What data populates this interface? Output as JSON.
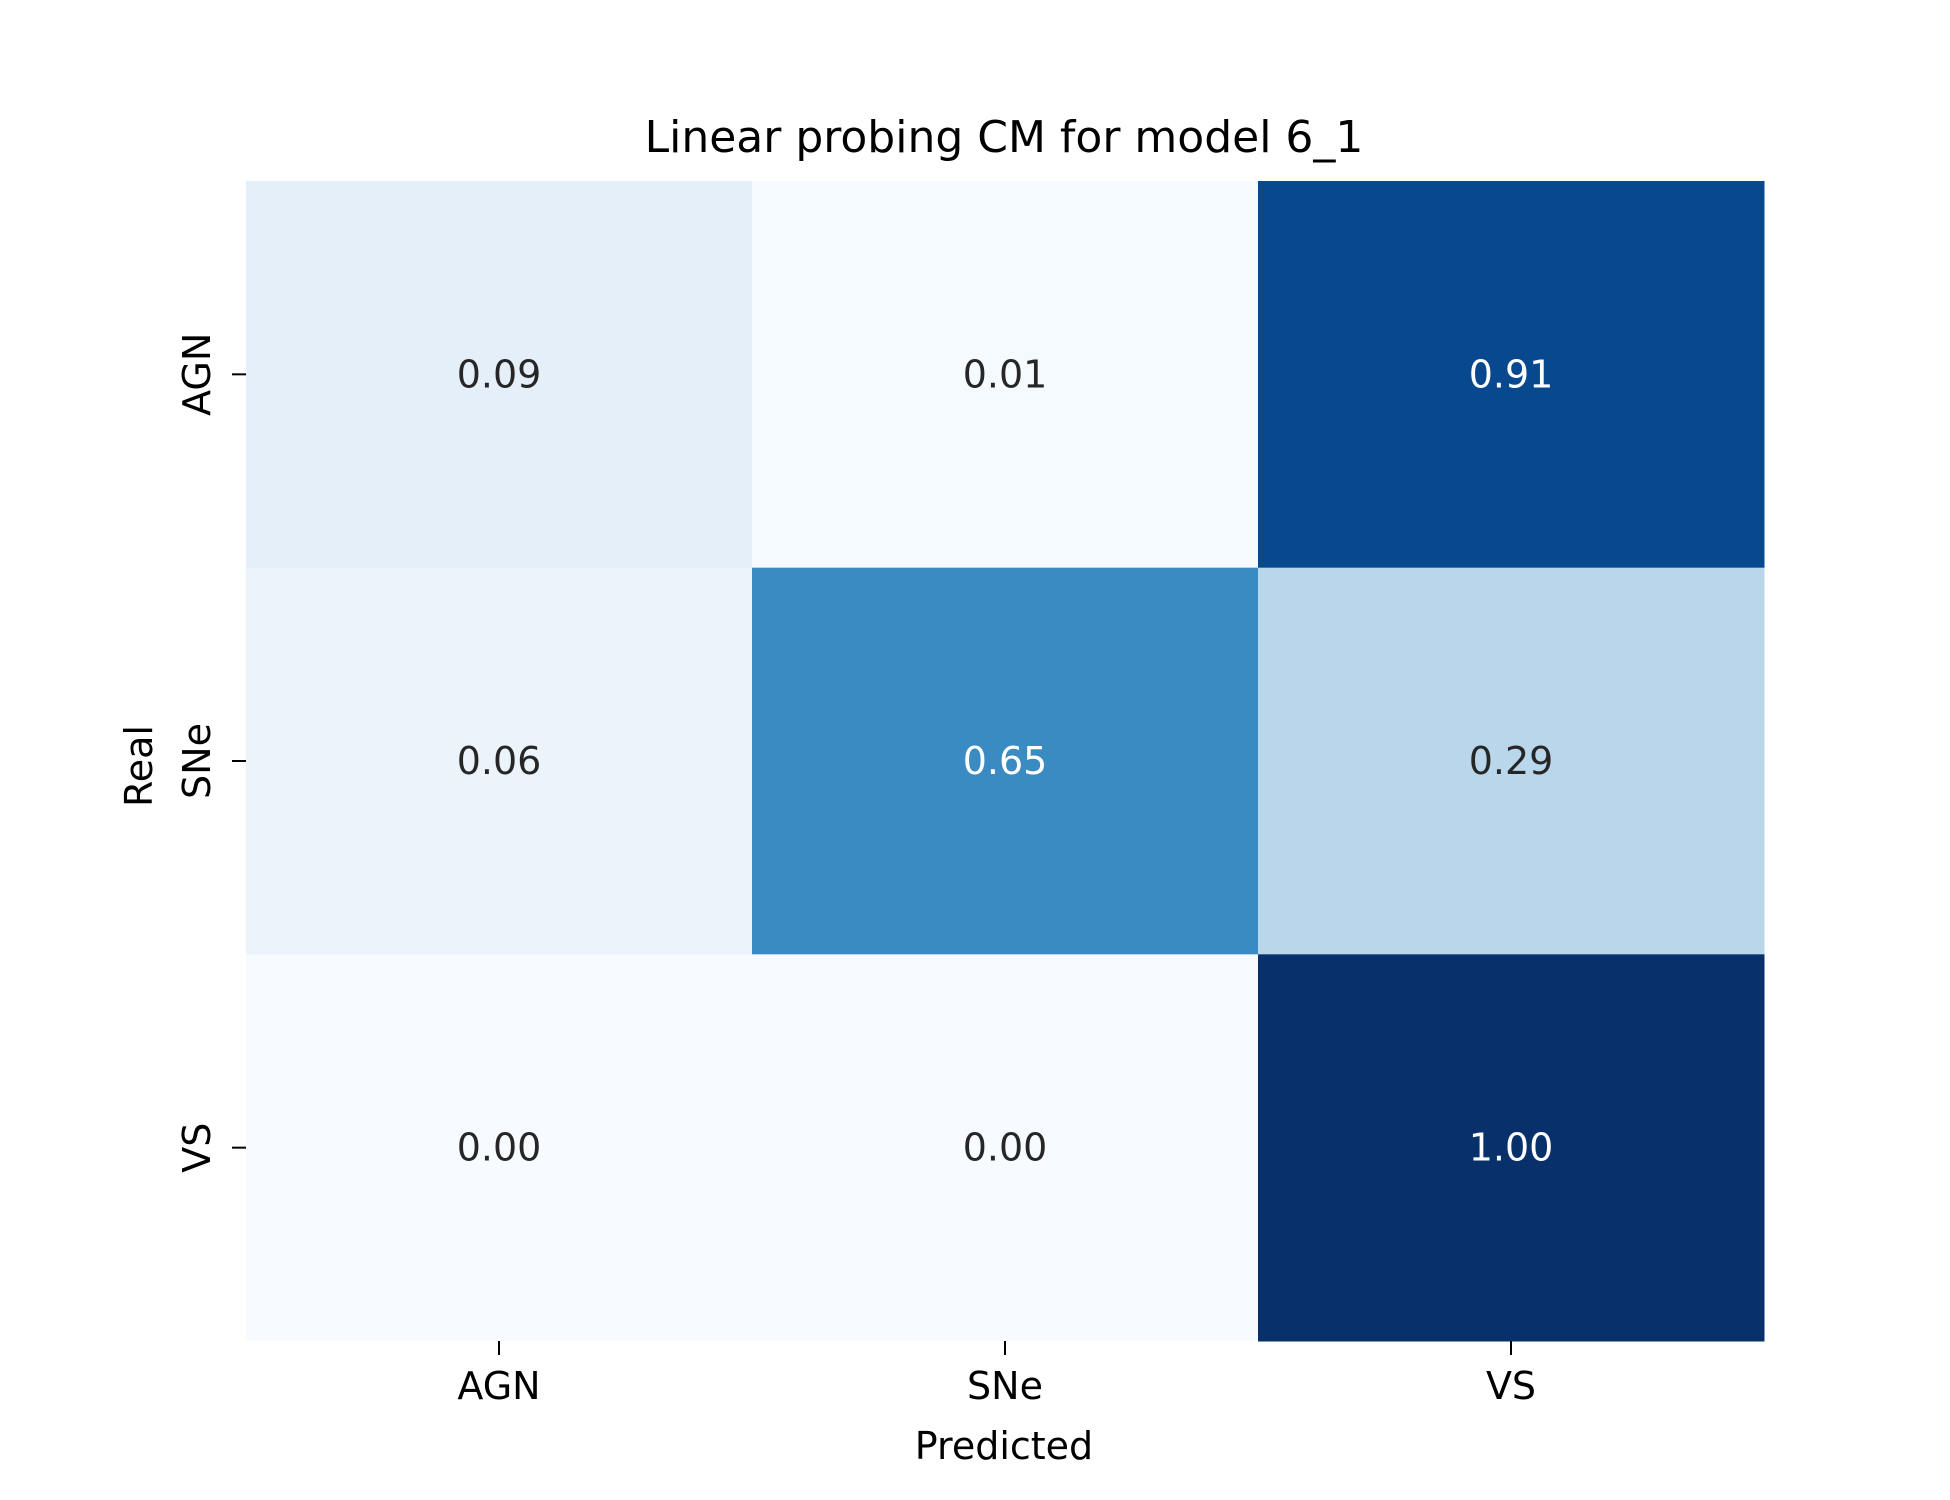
{
  "chart_data": {
    "type": "heatmap",
    "title": "Linear probing CM for model 6_1",
    "xlabel": "Predicted",
    "ylabel": "Real",
    "x_categories": [
      "AGN",
      "SNe",
      "VS"
    ],
    "y_categories": [
      "AGN",
      "SNe",
      "VS"
    ],
    "values": [
      [
        0.09,
        0.01,
        0.91
      ],
      [
        0.06,
        0.65,
        0.29
      ],
      [
        0.0,
        0.0,
        1.0
      ]
    ],
    "value_labels": [
      [
        "0.09",
        "0.01",
        "0.91"
      ],
      [
        "0.06",
        "0.65",
        "0.29"
      ],
      [
        "0.00",
        "0.00",
        "1.00"
      ]
    ],
    "colormap": "Blues",
    "value_range": [
      0,
      1
    ],
    "colorbar": false,
    "colors": {
      "low": "#f7fbff",
      "high": "#08306b",
      "text_dark": "#262626",
      "text_light": "#ffffff"
    }
  }
}
